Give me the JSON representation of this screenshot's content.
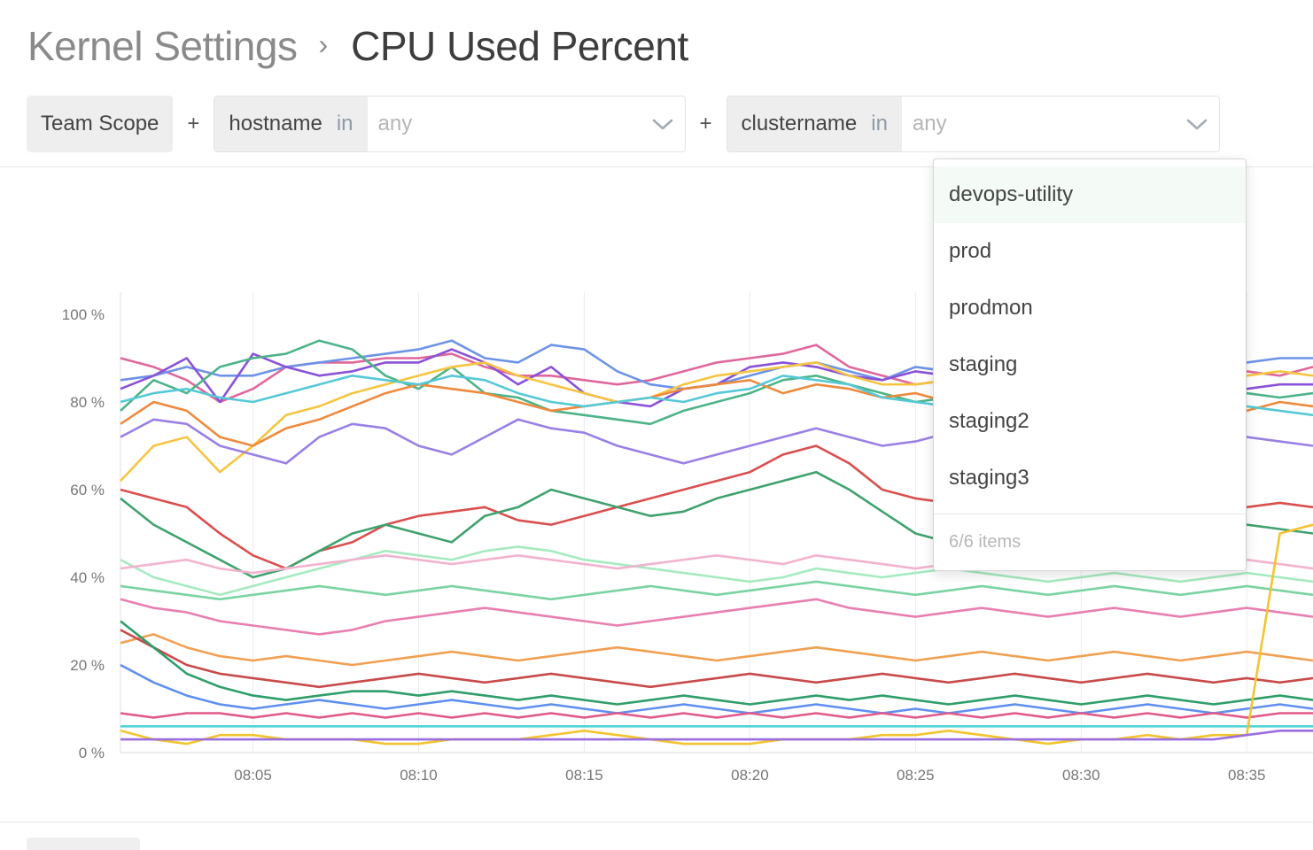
{
  "breadcrumb": {
    "parent": "Kernel Settings",
    "separator": "›",
    "current": "CPU Used Percent"
  },
  "filters": {
    "scope_label": "Team Scope",
    "plus": "+",
    "items": [
      {
        "key": "hostname",
        "operator": "in",
        "value": "any"
      },
      {
        "key": "clustername",
        "operator": "in",
        "value": "any"
      }
    ]
  },
  "dropdown": {
    "options": [
      "devops-utility",
      "prod",
      "prodmon",
      "staging",
      "staging2",
      "staging3"
    ],
    "highlighted": "devops-utility",
    "footer": "6/6 items"
  },
  "chart_data": {
    "type": "line",
    "title": "",
    "xlabel": "",
    "ylabel": "",
    "ylim": [
      0,
      100
    ],
    "yticks": [
      "0 %",
      "20 %",
      "40 %",
      "60 %",
      "80 %",
      "100 %"
    ],
    "xticks": [
      "08:05",
      "08:10",
      "08:15",
      "08:20",
      "08:25",
      "08:30",
      "08:35"
    ],
    "grid": true,
    "x": [
      "08:01",
      "08:02",
      "08:03",
      "08:04",
      "08:05",
      "08:06",
      "08:07",
      "08:08",
      "08:09",
      "08:10",
      "08:11",
      "08:12",
      "08:13",
      "08:14",
      "08:15",
      "08:16",
      "08:17",
      "08:18",
      "08:19",
      "08:20",
      "08:21",
      "08:22",
      "08:23",
      "08:24",
      "08:25",
      "08:26",
      "08:27",
      "08:28",
      "08:29",
      "08:30",
      "08:31",
      "08:32",
      "08:33",
      "08:34",
      "08:35",
      "08:36",
      "08:37"
    ],
    "series": [
      {
        "color": "#e0679b",
        "values": [
          90,
          88,
          85,
          80,
          83,
          88,
          89,
          89,
          90,
          90,
          91,
          88,
          86,
          86,
          85,
          84,
          85,
          87,
          89,
          90,
          91,
          93,
          88,
          86,
          84,
          85,
          84,
          83,
          84,
          85,
          84,
          85,
          84,
          86,
          87,
          86,
          88
        ]
      },
      {
        "color": "#6d93e8",
        "values": [
          85,
          86,
          88,
          86,
          86,
          88,
          89,
          90,
          91,
          92,
          94,
          90,
          89,
          93,
          92,
          87,
          84,
          83,
          84,
          86,
          88,
          89,
          87,
          85,
          88,
          87,
          85,
          84,
          85,
          86,
          85,
          86,
          87,
          88,
          89,
          90,
          90
        ]
      },
      {
        "color": "#8a52d6",
        "values": [
          83,
          86,
          90,
          80,
          91,
          88,
          86,
          87,
          89,
          89,
          92,
          89,
          84,
          88,
          82,
          80,
          79,
          83,
          84,
          88,
          89,
          88,
          86,
          85,
          87,
          86,
          85,
          83,
          84,
          85,
          84,
          86,
          85,
          84,
          83,
          84,
          84
        ]
      },
      {
        "color": "#4db388",
        "values": [
          78,
          85,
          82,
          88,
          90,
          91,
          94,
          92,
          86,
          83,
          88,
          82,
          81,
          78,
          77,
          76,
          75,
          78,
          80,
          82,
          85,
          86,
          84,
          82,
          80,
          81,
          78,
          76,
          77,
          78,
          79,
          80,
          80,
          81,
          82,
          81,
          82
        ]
      },
      {
        "color": "#f5c542",
        "values": [
          62,
          70,
          72,
          64,
          70,
          77,
          79,
          82,
          84,
          86,
          88,
          89,
          86,
          84,
          82,
          80,
          81,
          84,
          86,
          87,
          88,
          89,
          86,
          84,
          84,
          85,
          83,
          82,
          84,
          85,
          84,
          83,
          84,
          85,
          86,
          87,
          86
        ]
      },
      {
        "color": "#ee8a3e",
        "values": [
          75,
          80,
          78,
          72,
          70,
          74,
          76,
          79,
          82,
          84,
          83,
          82,
          80,
          78,
          79,
          80,
          81,
          83,
          84,
          85,
          82,
          84,
          83,
          81,
          82,
          80,
          79,
          80,
          81,
          82,
          80,
          81,
          80,
          79,
          78,
          80,
          79
        ]
      },
      {
        "color": "#56c9d6",
        "values": [
          80,
          82,
          83,
          81,
          80,
          82,
          84,
          86,
          85,
          84,
          86,
          85,
          82,
          80,
          79,
          80,
          81,
          80,
          82,
          83,
          86,
          85,
          84,
          81,
          80,
          79,
          78,
          80,
          81,
          80,
          79,
          78,
          79,
          80,
          79,
          78,
          77
        ]
      },
      {
        "color": "#9a80e5",
        "values": [
          72,
          76,
          75,
          70,
          68,
          66,
          72,
          75,
          74,
          70,
          68,
          72,
          76,
          74,
          73,
          70,
          68,
          66,
          68,
          70,
          72,
          74,
          72,
          70,
          71,
          73,
          72,
          71,
          72,
          73,
          72,
          71,
          70,
          71,
          72,
          71,
          70
        ]
      },
      {
        "color": "#d94f4f",
        "values": [
          60,
          58,
          56,
          50,
          45,
          42,
          46,
          48,
          52,
          54,
          55,
          56,
          53,
          52,
          54,
          56,
          58,
          60,
          62,
          64,
          68,
          70,
          66,
          60,
          58,
          57,
          56,
          55,
          56,
          57,
          58,
          57,
          56,
          55,
          56,
          57,
          56
        ]
      },
      {
        "color": "#3fa26e",
        "values": [
          58,
          52,
          48,
          44,
          40,
          42,
          46,
          50,
          52,
          50,
          48,
          54,
          56,
          60,
          58,
          56,
          54,
          55,
          58,
          60,
          62,
          64,
          60,
          55,
          50,
          48,
          46,
          48,
          50,
          52,
          51,
          50,
          52,
          53,
          52,
          51,
          50
        ]
      },
      {
        "color": "#a6eac0",
        "values": [
          44,
          40,
          38,
          36,
          38,
          40,
          42,
          44,
          46,
          45,
          44,
          46,
          47,
          46,
          44,
          43,
          42,
          41,
          40,
          39,
          40,
          42,
          41,
          40,
          41,
          42,
          41,
          40,
          39,
          40,
          41,
          40,
          39,
          40,
          41,
          40,
          39
        ]
      },
      {
        "color": "#f2b3cf",
        "values": [
          42,
          43,
          44,
          42,
          41,
          42,
          43,
          44,
          45,
          44,
          43,
          44,
          45,
          44,
          43,
          42,
          43,
          44,
          45,
          44,
          43,
          45,
          44,
          43,
          42,
          43,
          44,
          43,
          42,
          43,
          44,
          43,
          42,
          43,
          44,
          43,
          42
        ]
      },
      {
        "color": "#7bd3a3",
        "values": [
          38,
          37,
          36,
          35,
          36,
          37,
          38,
          37,
          36,
          37,
          38,
          37,
          36,
          35,
          36,
          37,
          38,
          37,
          36,
          37,
          38,
          39,
          38,
          37,
          36,
          37,
          38,
          37,
          36,
          37,
          38,
          37,
          36,
          37,
          38,
          37,
          36
        ]
      },
      {
        "color": "#e87fb0",
        "values": [
          35,
          33,
          32,
          30,
          29,
          28,
          27,
          28,
          30,
          31,
          32,
          33,
          32,
          31,
          30,
          29,
          30,
          31,
          32,
          33,
          34,
          35,
          33,
          32,
          31,
          32,
          33,
          32,
          31,
          32,
          33,
          32,
          31,
          32,
          33,
          32,
          31
        ]
      },
      {
        "color": "#f0a052",
        "values": [
          25,
          27,
          24,
          22,
          21,
          22,
          21,
          20,
          21,
          22,
          23,
          22,
          21,
          22,
          23,
          24,
          23,
          22,
          21,
          22,
          23,
          24,
          23,
          22,
          21,
          22,
          23,
          22,
          21,
          22,
          23,
          22,
          21,
          22,
          23,
          22,
          21
        ]
      },
      {
        "color": "#c94a4a",
        "values": [
          28,
          24,
          20,
          18,
          17,
          16,
          15,
          16,
          17,
          18,
          17,
          16,
          17,
          18,
          17,
          16,
          15,
          16,
          17,
          18,
          17,
          16,
          17,
          18,
          17,
          16,
          17,
          18,
          17,
          16,
          17,
          18,
          17,
          16,
          17,
          16,
          17
        ]
      },
      {
        "color": "#2f9e6a",
        "values": [
          30,
          24,
          18,
          15,
          13,
          12,
          13,
          14,
          14,
          13,
          14,
          13,
          12,
          13,
          12,
          11,
          12,
          13,
          12,
          11,
          12,
          13,
          12,
          13,
          12,
          11,
          12,
          13,
          12,
          11,
          12,
          13,
          12,
          11,
          12,
          13,
          12
        ]
      },
      {
        "color": "#5f8ff0",
        "values": [
          20,
          16,
          13,
          11,
          10,
          11,
          12,
          11,
          10,
          11,
          12,
          11,
          10,
          11,
          10,
          9,
          10,
          11,
          10,
          9,
          10,
          11,
          10,
          9,
          10,
          9,
          10,
          11,
          10,
          9,
          10,
          11,
          10,
          9,
          10,
          11,
          10
        ]
      },
      {
        "color": "#e05a8a",
        "values": [
          9,
          8,
          9,
          9,
          8,
          9,
          8,
          9,
          8,
          9,
          8,
          9,
          8,
          9,
          8,
          9,
          8,
          9,
          8,
          9,
          8,
          9,
          8,
          9,
          8,
          9,
          8,
          9,
          8,
          9,
          8,
          9,
          8,
          9,
          8,
          9,
          9
        ]
      },
      {
        "color": "#4fd3d9",
        "values": [
          6,
          6,
          6,
          6,
          6,
          6,
          6,
          6,
          6,
          6,
          6,
          6,
          6,
          6,
          6,
          6,
          6,
          6,
          6,
          6,
          6,
          6,
          6,
          6,
          6,
          6,
          6,
          6,
          6,
          6,
          6,
          6,
          6,
          6,
          6,
          6,
          6
        ]
      },
      {
        "color": "#f4c430",
        "values": [
          5,
          3,
          2,
          4,
          4,
          3,
          3,
          3,
          2,
          2,
          3,
          3,
          3,
          4,
          5,
          4,
          3,
          2,
          2,
          2,
          3,
          3,
          3,
          4,
          4,
          5,
          4,
          3,
          2,
          3,
          3,
          4,
          3,
          4,
          4,
          50,
          52
        ]
      },
      {
        "color": "#9a6ee0",
        "values": [
          3,
          3,
          3,
          3,
          3,
          3,
          3,
          3,
          3,
          3,
          3,
          3,
          3,
          3,
          3,
          3,
          3,
          3,
          3,
          3,
          3,
          3,
          3,
          3,
          3,
          3,
          3,
          3,
          3,
          3,
          3,
          3,
          3,
          3,
          4,
          5,
          5
        ]
      }
    ]
  }
}
